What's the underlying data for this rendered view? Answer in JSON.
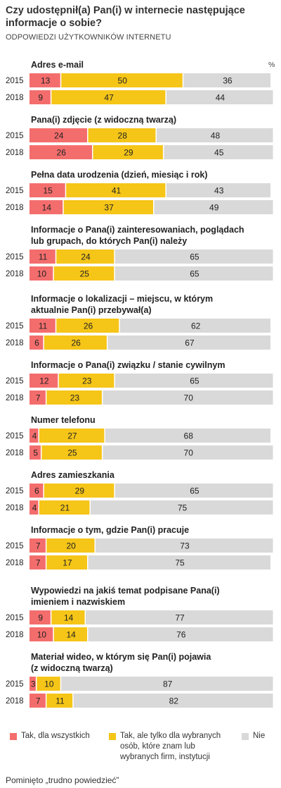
{
  "title": "Czy udostępnił(a) Pan(i) w internecie następujące informacje o sobie?",
  "subtitle": "ODPOWIEDZI UŻYTKOWNIKÓW INTERNETU",
  "unit": "%",
  "footnote": "Pominięto „trudno powiedzieć”",
  "colors": {
    "all": "#f46d6d",
    "selected": "#f5c518",
    "no": "#d9d9d9"
  },
  "chart_data": {
    "type": "bar",
    "orientation": "horizontal",
    "stacked": true,
    "xlim": [
      0,
      100
    ],
    "series_names": [
      "Tak, dla wszystkich",
      "Tak, ale tylko dla wybranych osób, które znam lub wybranych firm, instytucji",
      "Nie"
    ],
    "groups": [
      {
        "label": [
          "Adres e-mail"
        ],
        "rows": [
          {
            "year": "2015",
            "values": [
              13,
              50,
              36
            ]
          },
          {
            "year": "2018",
            "values": [
              9,
              47,
              44
            ]
          }
        ]
      },
      {
        "label": [
          "Pana(i) zdjęcie (z widoczną twarzą)"
        ],
        "rows": [
          {
            "year": "2015",
            "values": [
              24,
              28,
              48
            ]
          },
          {
            "year": "2018",
            "values": [
              26,
              29,
              45
            ]
          }
        ]
      },
      {
        "label": [
          "Pełna data urodzenia (dzień, miesiąc i rok)"
        ],
        "rows": [
          {
            "year": "2015",
            "values": [
              15,
              41,
              43
            ]
          },
          {
            "year": "2018",
            "values": [
              14,
              37,
              49
            ]
          }
        ]
      },
      {
        "label": [
          "Informacje o Pana(i) zainteresowaniach, poglądach",
          "lub grupach, do których Pan(i) należy"
        ],
        "rows": [
          {
            "year": "2015",
            "values": [
              11,
              24,
              65
            ]
          },
          {
            "year": "2018",
            "values": [
              10,
              25,
              65
            ]
          }
        ]
      },
      {
        "label": [
          "Informacje o lokalizacji – miejscu, w którym",
          "aktualnie Pan(i) przebywał(a)"
        ],
        "rows": [
          {
            "year": "2015",
            "values": [
              11,
              26,
              62
            ]
          },
          {
            "year": "2018",
            "values": [
              6,
              26,
              67
            ]
          }
        ]
      },
      {
        "label": [
          "Informacje o Pana(i) związku / stanie cywilnym"
        ],
        "rows": [
          {
            "year": "2015",
            "values": [
              12,
              23,
              65
            ]
          },
          {
            "year": "2018",
            "values": [
              7,
              23,
              70
            ]
          }
        ]
      },
      {
        "label": [
          "Numer telefonu"
        ],
        "rows": [
          {
            "year": "2015",
            "values": [
              4,
              27,
              68
            ]
          },
          {
            "year": "2018",
            "values": [
              5,
              25,
              70
            ]
          }
        ]
      },
      {
        "label": [
          "Adres zamieszkania"
        ],
        "rows": [
          {
            "year": "2015",
            "values": [
              6,
              29,
              65
            ]
          },
          {
            "year": "2018",
            "values": [
              4,
              21,
              75
            ]
          }
        ]
      },
      {
        "label": [
          "Informacje o tym, gdzie Pan(i) pracuje"
        ],
        "rows": [
          {
            "year": "2015",
            "values": [
              7,
              20,
              73
            ]
          },
          {
            "year": "2018",
            "values": [
              7,
              17,
              75
            ]
          }
        ]
      },
      {
        "label": [
          "Wypowiedzi na jakiś temat podpisane Pana(i)",
          "imieniem i nazwiskiem"
        ],
        "rows": [
          {
            "year": "2015",
            "values": [
              9,
              14,
              77
            ]
          },
          {
            "year": "2018",
            "values": [
              10,
              14,
              76
            ]
          }
        ]
      },
      {
        "label": [
          "Materiał wideo, w którym się Pan(i) pojawia",
          "(z widoczną twarzą)"
        ],
        "rows": [
          {
            "year": "2015",
            "values": [
              3,
              10,
              87
            ]
          },
          {
            "year": "2018",
            "values": [
              7,
              11,
              82
            ]
          }
        ]
      }
    ]
  },
  "legend": {
    "all": [
      "Tak, dla wszystkich"
    ],
    "selected": [
      "Tak, ale tylko dla wybranych",
      "osób, które znam lub",
      "wybranych firm, instytucji"
    ],
    "no": [
      "Nie"
    ]
  }
}
